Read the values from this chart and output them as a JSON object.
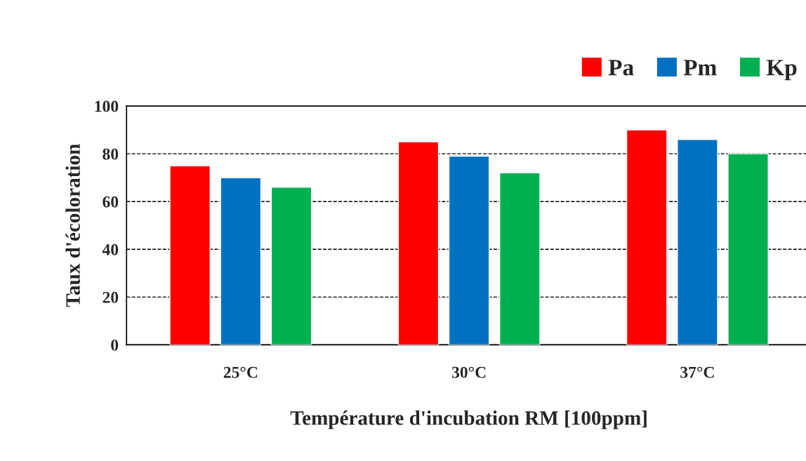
{
  "chart_data": {
    "type": "bar",
    "xlabel": "Température d'incubation RM [100ppm]",
    "ylabel": "Taux d'écoloration",
    "categories": [
      "25°C",
      "30°C",
      "37°C"
    ],
    "series": [
      {
        "name": "Pa",
        "color": "#ff0000",
        "values": [
          75,
          85,
          90
        ]
      },
      {
        "name": "Pm",
        "color": "#0070c0",
        "values": [
          70,
          79,
          86
        ]
      },
      {
        "name": "Kp",
        "color": "#00b050",
        "values": [
          66,
          72,
          80
        ]
      }
    ],
    "ylim": [
      0,
      100
    ],
    "yticks": [
      0,
      20,
      40,
      60,
      80,
      100
    ],
    "grid": "y",
    "legend": "top right"
  }
}
